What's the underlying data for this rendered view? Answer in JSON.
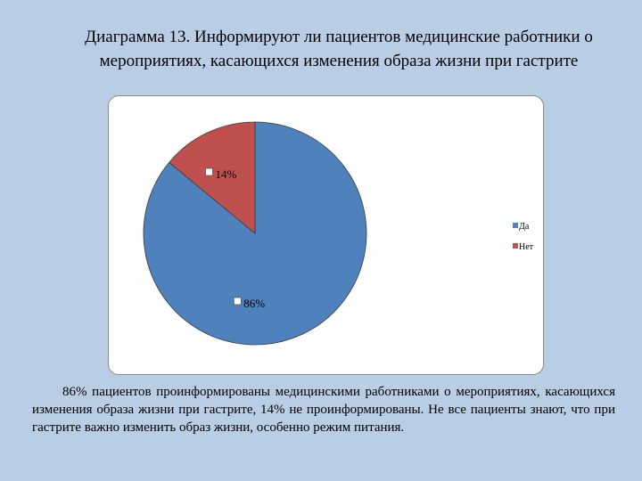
{
  "title": "Диаграмма 13. Информируют ли пациентов медицинские работники о мероприятиях, касающихся изменения образа жизни при гастрите",
  "chart_data": {
    "type": "pie",
    "categories": [
      "Да",
      "Нет"
    ],
    "values": [
      86,
      14
    ],
    "data_labels": [
      "86%",
      "14%"
    ],
    "colors": [
      "#4f81bd",
      "#c0504d"
    ],
    "legend": {
      "position": "right",
      "entries": [
        "Да",
        "Нет"
      ]
    }
  },
  "caption": "86% пациентов проинформированы медицинскими работниками о мероприятиях, касающихся изменения образа жизни при гастрите, 14% не проинформированы. Не все пациенты знают, что при гастрите важно изменить образ жизни, особенно режим питания."
}
